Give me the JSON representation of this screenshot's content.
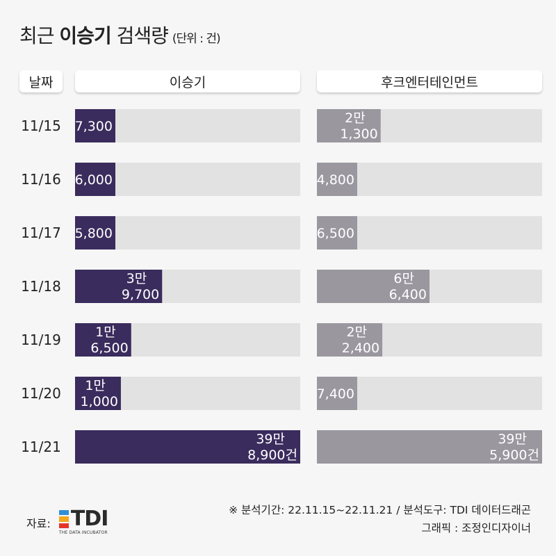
{
  "title": {
    "pre": "최근 ",
    "bold": "이승기",
    "post": " 검색량",
    "unit": "(단위 : 건)"
  },
  "headers": {
    "date": "날짜",
    "series_a": "이승기",
    "series_b": "후크엔터테인먼트"
  },
  "colors": {
    "series_a": "#3a2c5d",
    "series_b": "#9a979f",
    "track": "#e2e2e2"
  },
  "chart_data": {
    "type": "bar",
    "categories": [
      "11/15",
      "11/16",
      "11/17",
      "11/18",
      "11/19",
      "11/20",
      "11/21"
    ],
    "series": [
      {
        "name": "이승기",
        "values": [
          7300,
          6000,
          5800,
          39700,
          16500,
          11000,
          398900
        ],
        "labels": [
          [
            "7,300"
          ],
          [
            "6,000"
          ],
          [
            "5,800"
          ],
          [
            "3만",
            "9,700"
          ],
          [
            "1만",
            "6,500"
          ],
          [
            "1만",
            "1,000"
          ],
          [
            "39만",
            "8,900건"
          ]
        ]
      },
      {
        "name": "후크엔터테인먼트",
        "values": [
          21300,
          4800,
          6500,
          66400,
          22400,
          7400,
          395900
        ],
        "labels": [
          [
            "2만",
            "1,300"
          ],
          [
            "4,800"
          ],
          [
            "6,500"
          ],
          [
            "6만",
            "6,400"
          ],
          [
            "2만",
            "2,400"
          ],
          [
            "7,400"
          ],
          [
            "39만",
            "5,900건"
          ]
        ]
      }
    ]
  },
  "footer": {
    "source_label": "자료:",
    "logo_text": "TDI",
    "logo_sub": "THE DATA INCUBATOR",
    "logo_colors": [
      "#2f8fd8",
      "#f2a81d",
      "#e5352b"
    ],
    "note_line1": "※ 분석기간: 22.11.15~22.11.21 / 분석도구: TDI 데이터드래곤",
    "note_line2": "그래픽 : 조정인디자이너"
  }
}
